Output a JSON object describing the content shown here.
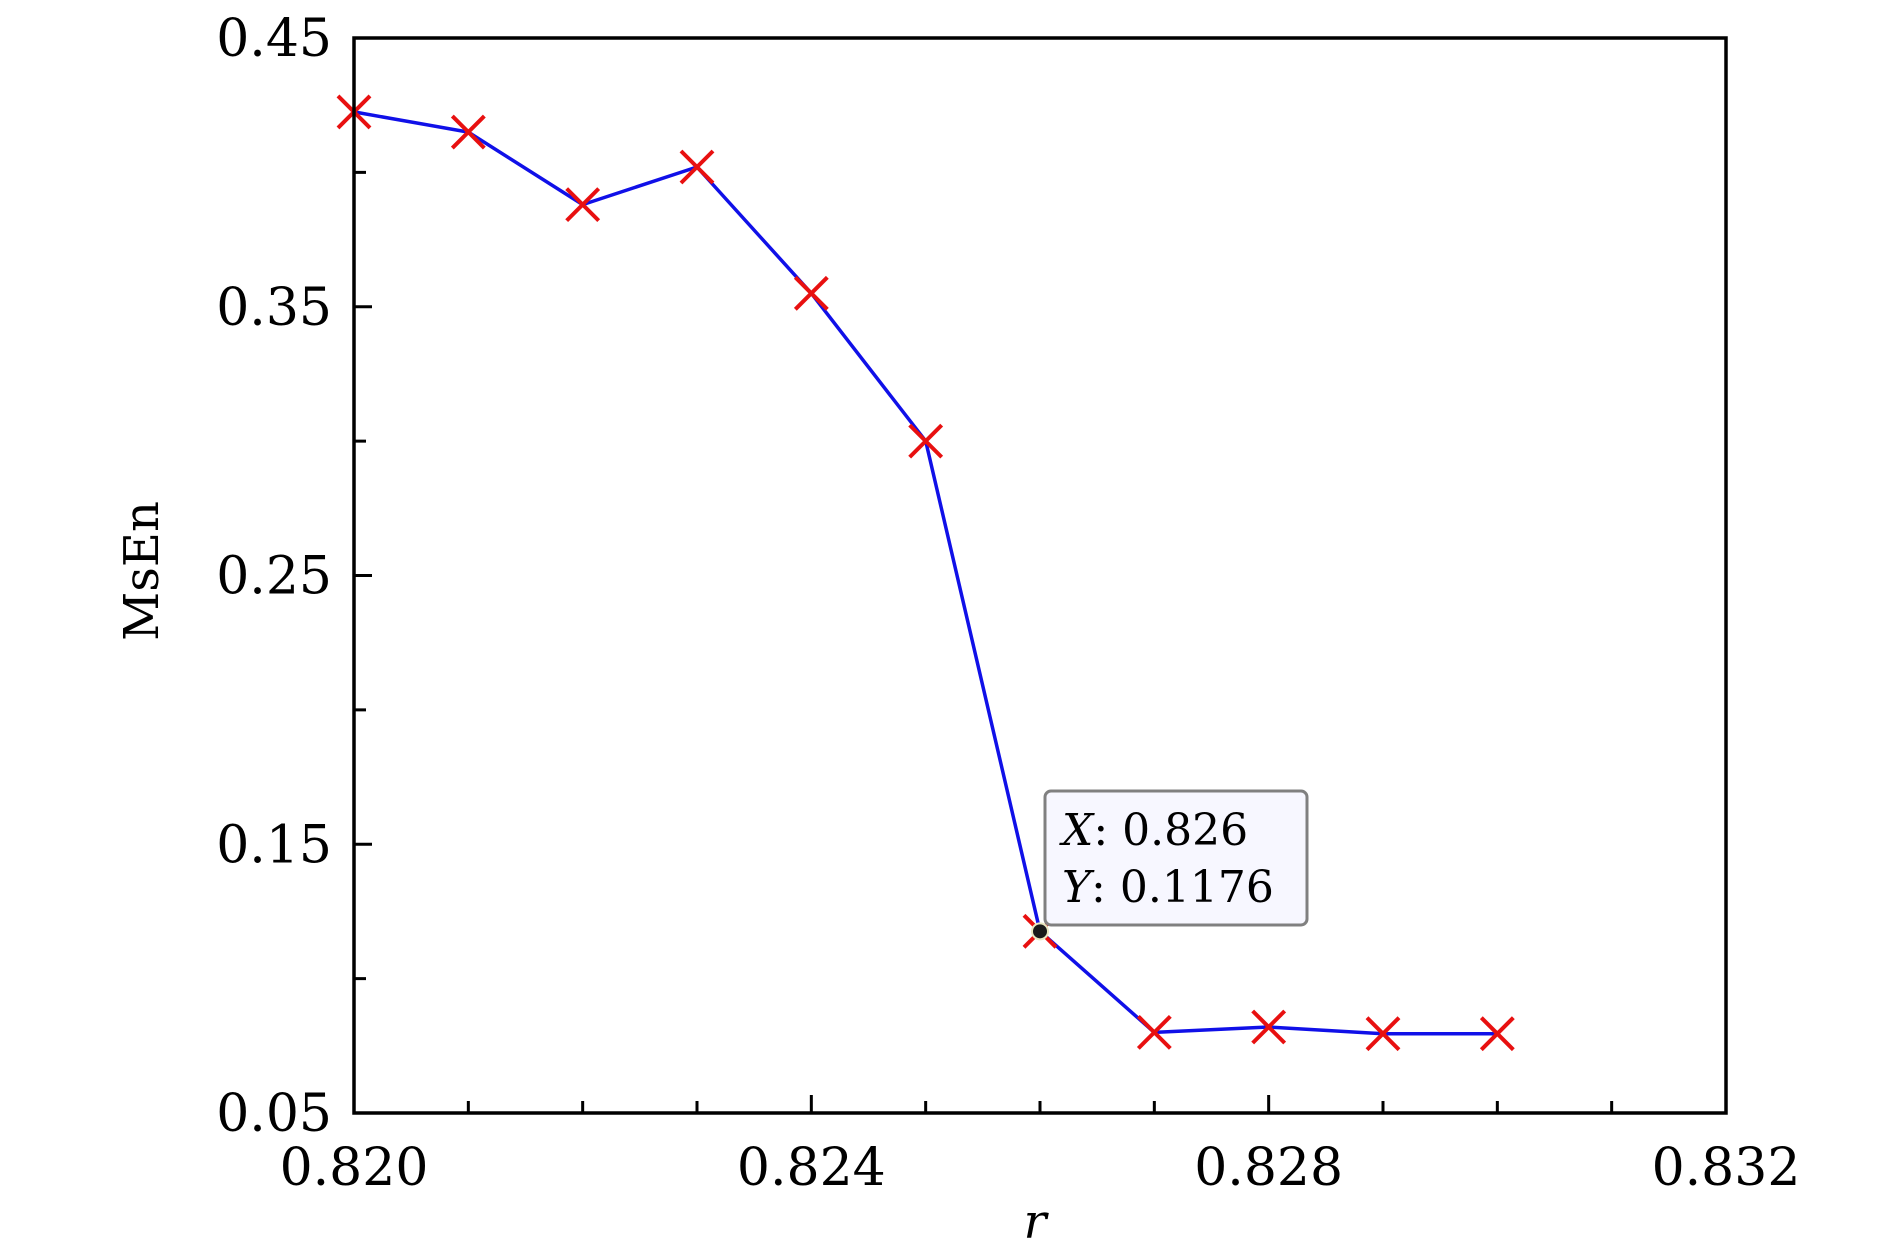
{
  "chart_data": {
    "type": "line",
    "xlabel": "r",
    "ylabel": "MsEn",
    "xlim": [
      0.82,
      0.832
    ],
    "ylim": [
      0.05,
      0.45
    ],
    "x_ticks": [
      "0.820",
      "0.824",
      "0.828",
      "0.832"
    ],
    "y_ticks": [
      "0.05",
      "0.15",
      "0.25",
      "0.35",
      "0.45"
    ],
    "grid": false,
    "line_color": "#1010e8",
    "marker_color": "#e81010",
    "marker": "x",
    "series": [
      {
        "x": [
          0.82,
          0.821,
          0.822,
          0.823,
          0.824,
          0.825,
          0.826,
          0.827,
          0.828,
          0.829,
          0.83
        ],
        "y": [
          0.4225,
          0.415,
          0.388,
          0.402,
          0.355,
          0.3,
          0.1176,
          0.08,
          0.082,
          0.0795,
          0.0795
        ]
      }
    ],
    "datatip": {
      "x_key": "X",
      "x_value": "0.826",
      "y_key": "Y",
      "y_value": "0.1176",
      "x": 0.826,
      "y": 0.1176
    }
  }
}
